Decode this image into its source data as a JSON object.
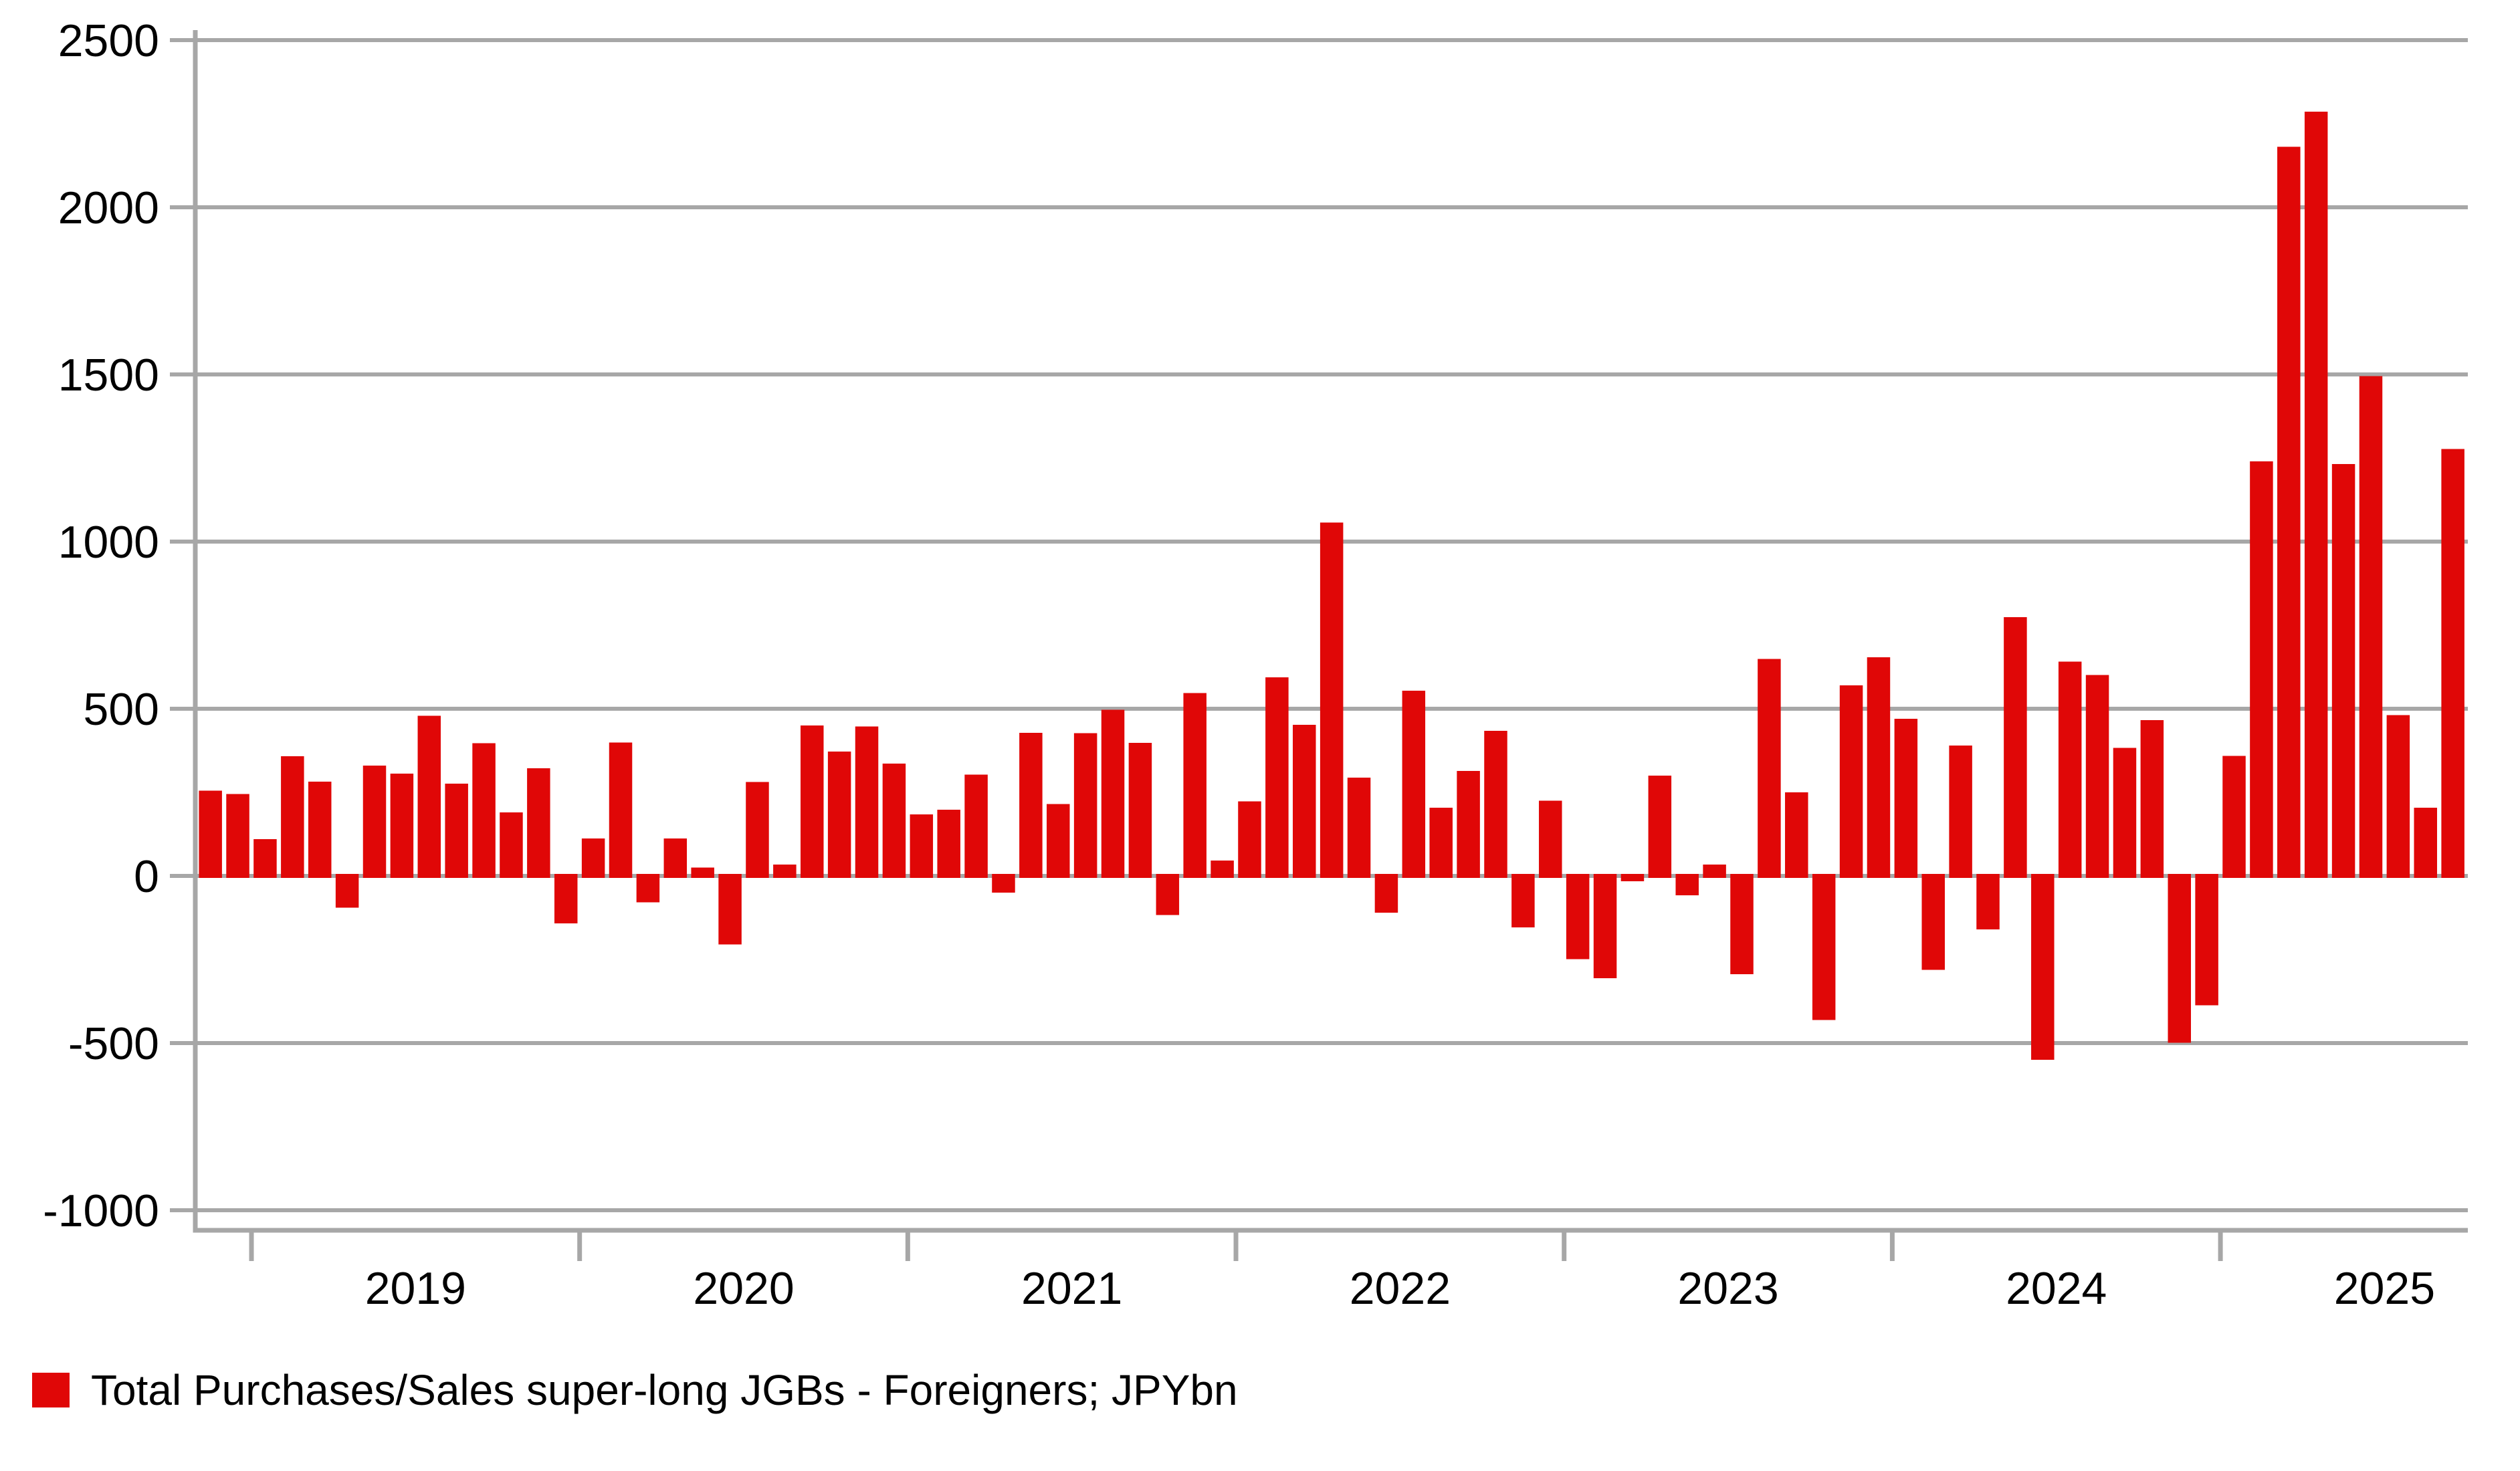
{
  "legend": {
    "label": "Total Purchases/Sales super-long JGBs - Foreigners; JPYbn"
  },
  "chart_data": {
    "type": "bar",
    "title": "",
    "xlabel": "",
    "ylabel": "",
    "legend_position": "bottom-left",
    "legend_entries": [
      "Total Purchases/Sales super-long JGBs - Foreigners; JPYbn"
    ],
    "bar_color": "#e00707",
    "axis_color": "#a7a7a7",
    "grid": true,
    "ylim": [
      -1090,
      2530
    ],
    "yticks": [
      2500,
      2000,
      1500,
      1000,
      500,
      0,
      -500,
      -1000
    ],
    "ytick_labels": [
      "2500",
      "2000",
      "1500",
      "1000",
      "500",
      "0",
      "-500",
      "-1000"
    ],
    "x_year_labels": [
      "2019",
      "2020",
      "2021",
      "2022",
      "2023",
      "2024",
      "2025"
    ],
    "first_month": "2018-11",
    "last_month": "2025-09",
    "series": [
      {
        "name": "Total Purchases/Sales super-long JGBs - Foreigners; JPYbn",
        "points": [
          {
            "m": "Nov 2018",
            "v": 255
          },
          {
            "m": "Dec 2018",
            "v": 245
          },
          {
            "m": "Jan 2019",
            "v": 110
          },
          {
            "m": "Feb 2019",
            "v": 358
          },
          {
            "m": "Mar 2019",
            "v": 282
          },
          {
            "m": "Apr 2019",
            "v": -95
          },
          {
            "m": "May 2019",
            "v": 330
          },
          {
            "m": "Jun 2019",
            "v": 306
          },
          {
            "m": "Jul 2019",
            "v": 479
          },
          {
            "m": "Aug 2019",
            "v": 276
          },
          {
            "m": "Sep 2019",
            "v": 397
          },
          {
            "m": "Oct 2019",
            "v": 190
          },
          {
            "m": "Nov 2019",
            "v": 322
          },
          {
            "m": "Dec 2019",
            "v": -142
          },
          {
            "m": "Jan 2020",
            "v": 112
          },
          {
            "m": "Feb 2020",
            "v": 399
          },
          {
            "m": "Mar 2020",
            "v": -79
          },
          {
            "m": "Apr 2020",
            "v": 112
          },
          {
            "m": "May 2020",
            "v": 25
          },
          {
            "m": "Jun 2020",
            "v": -205
          },
          {
            "m": "Jul 2020",
            "v": 281
          },
          {
            "m": "Aug 2020",
            "v": 34
          },
          {
            "m": "Sep 2020",
            "v": 450
          },
          {
            "m": "Oct 2020",
            "v": 372
          },
          {
            "m": "Nov 2020",
            "v": 447
          },
          {
            "m": "Dec 2020",
            "v": 336
          },
          {
            "m": "Jan 2021",
            "v": 184
          },
          {
            "m": "Feb 2021",
            "v": 198
          },
          {
            "m": "Mar 2021",
            "v": 303
          },
          {
            "m": "Apr 2021",
            "v": -50
          },
          {
            "m": "May 2021",
            "v": 428
          },
          {
            "m": "Jun 2021",
            "v": 215
          },
          {
            "m": "Jul 2021",
            "v": 427
          },
          {
            "m": "Aug 2021",
            "v": 497
          },
          {
            "m": "Sep 2021",
            "v": 398
          },
          {
            "m": "Oct 2021",
            "v": -117
          },
          {
            "m": "Nov 2021",
            "v": 547
          },
          {
            "m": "Dec 2021",
            "v": 46
          },
          {
            "m": "Jan 2022",
            "v": 223
          },
          {
            "m": "Feb 2022",
            "v": 594
          },
          {
            "m": "Mar 2022",
            "v": 452
          },
          {
            "m": "Apr 2022",
            "v": 1057
          },
          {
            "m": "May 2022",
            "v": 294
          },
          {
            "m": "Jun 2022",
            "v": -110
          },
          {
            "m": "Jul 2022",
            "v": 554
          },
          {
            "m": "Aug 2022",
            "v": 204
          },
          {
            "m": "Sep 2022",
            "v": 314
          },
          {
            "m": "Oct 2022",
            "v": 434
          },
          {
            "m": "Nov 2022",
            "v": -154
          },
          {
            "m": "Dec 2022",
            "v": 225
          },
          {
            "m": "Jan 2023",
            "v": -249
          },
          {
            "m": "Feb 2023",
            "v": -306
          },
          {
            "m": "Mar 2023",
            "v": -16
          },
          {
            "m": "Apr 2023",
            "v": 300
          },
          {
            "m": "May 2023",
            "v": -58
          },
          {
            "m": "Jun 2023",
            "v": 34
          },
          {
            "m": "Jul 2023",
            "v": -294
          },
          {
            "m": "Aug 2023",
            "v": 649
          },
          {
            "m": "Sep 2023",
            "v": 250
          },
          {
            "m": "Oct 2023",
            "v": -431
          },
          {
            "m": "Nov 2023",
            "v": 570
          },
          {
            "m": "Dec 2023",
            "v": 654
          },
          {
            "m": "Jan 2024",
            "v": 470
          },
          {
            "m": "Feb 2024",
            "v": -281
          },
          {
            "m": "Mar 2024",
            "v": 390
          },
          {
            "m": "Apr 2024",
            "v": -160
          },
          {
            "m": "May 2024",
            "v": 774
          },
          {
            "m": "Jun 2024",
            "v": -550
          },
          {
            "m": "Jul 2024",
            "v": 641
          },
          {
            "m": "Aug 2024",
            "v": 601
          },
          {
            "m": "Sep 2024",
            "v": 383
          },
          {
            "m": "Oct 2024",
            "v": 466
          },
          {
            "m": "Nov 2024",
            "v": -499
          },
          {
            "m": "Dec 2024",
            "v": -387
          },
          {
            "m": "Jan 2025",
            "v": 359
          },
          {
            "m": "Feb 2025",
            "v": 1240
          },
          {
            "m": "Mar 2025",
            "v": 2181
          },
          {
            "m": "Apr 2025",
            "v": 2286
          },
          {
            "m": "May 2025",
            "v": 1232
          },
          {
            "m": "Jun 2025",
            "v": 1495
          },
          {
            "m": "Jul 2025",
            "v": 481
          },
          {
            "m": "Aug 2025",
            "v": 204
          },
          {
            "m": "Sep 2025",
            "v": 1277
          }
        ]
      }
    ]
  }
}
